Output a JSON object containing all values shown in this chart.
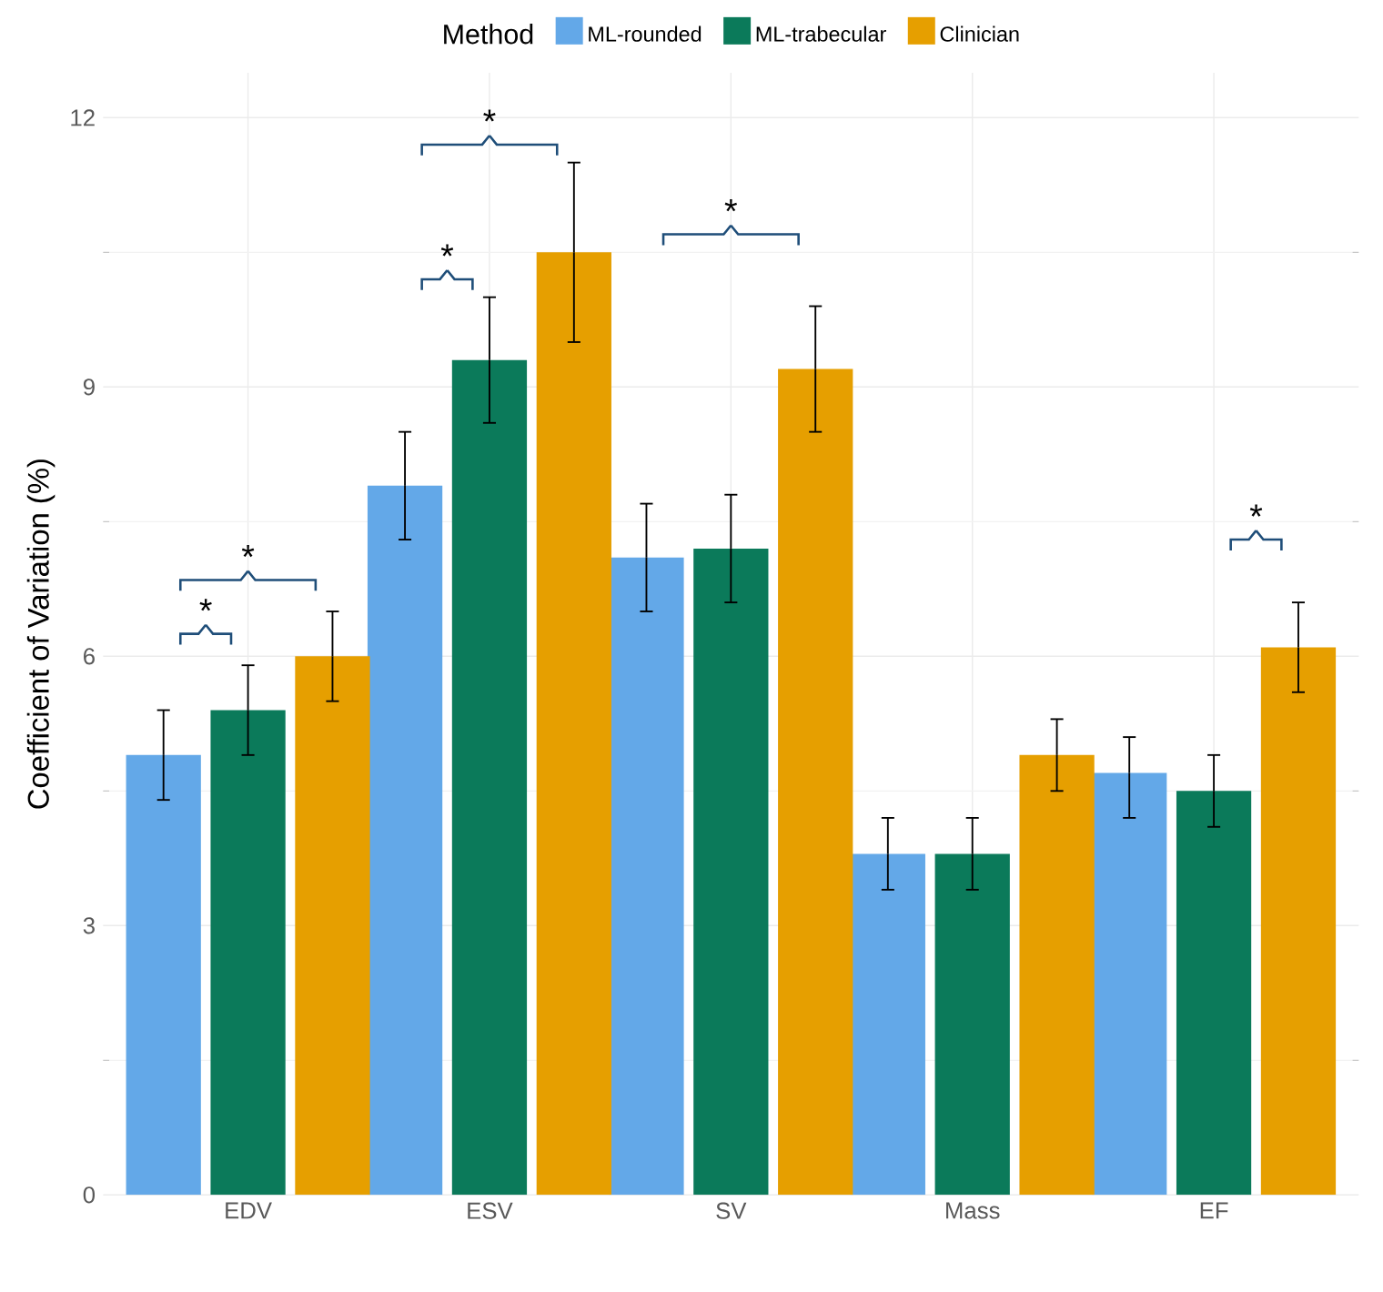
{
  "chart_data": {
    "type": "bar",
    "ylabel": "Coefficient of Variation (%)",
    "legend_title": "Method",
    "categories": [
      "EDV",
      "ESV",
      "SV",
      "Mass",
      "EF"
    ],
    "series": [
      {
        "name": "ML-rounded",
        "color": "#63a8e8",
        "values": [
          4.9,
          7.9,
          7.1,
          3.8,
          4.7
        ],
        "errors": [
          [
            4.4,
            5.4
          ],
          [
            7.3,
            8.5
          ],
          [
            6.5,
            7.7
          ],
          [
            3.4,
            4.2
          ],
          [
            4.2,
            5.1
          ]
        ]
      },
      {
        "name": "ML-trabecular",
        "color": "#0b7a5a",
        "values": [
          5.4,
          9.3,
          7.2,
          3.8,
          4.5
        ],
        "errors": [
          [
            4.9,
            5.9
          ],
          [
            8.6,
            10.0
          ],
          [
            6.6,
            7.8
          ],
          [
            3.4,
            4.2
          ],
          [
            4.1,
            4.9
          ]
        ]
      },
      {
        "name": "Clinician",
        "color": "#e69f00",
        "values": [
          6.0,
          10.5,
          9.2,
          4.9,
          6.1
        ],
        "errors": [
          [
            5.5,
            6.5
          ],
          [
            9.5,
            11.5
          ],
          [
            8.5,
            9.9
          ],
          [
            4.5,
            5.3
          ],
          [
            5.6,
            6.6
          ]
        ]
      }
    ],
    "ylim": [
      0,
      12.5
    ],
    "yticks": [
      0,
      3,
      6,
      9,
      12
    ],
    "grid": true,
    "legend": "top",
    "annotations": [
      "*",
      "*",
      "*",
      "*",
      "*",
      "*"
    ]
  }
}
